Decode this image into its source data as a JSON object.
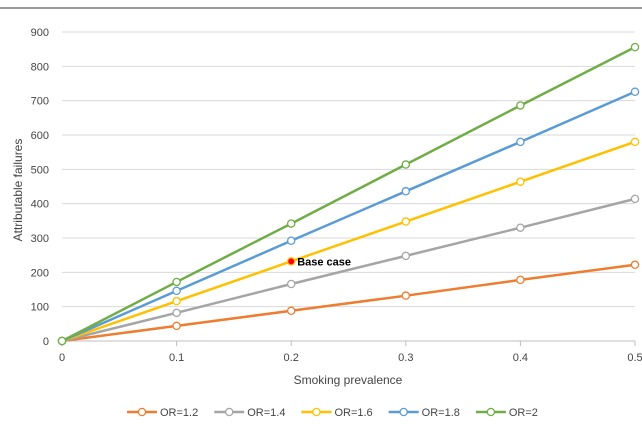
{
  "chart_data": {
    "type": "line",
    "title": "",
    "xlabel": "Smoking prevalence",
    "ylabel": "Attributable failures",
    "x": [
      0,
      0.1,
      0.2,
      0.3,
      0.4,
      0.5
    ],
    "x_ticks": [
      "0",
      "0.1",
      "0.2",
      "0.3",
      "0.4",
      "0.5"
    ],
    "y_ticks": [
      "0",
      "100",
      "200",
      "300",
      "400",
      "500",
      "600",
      "700",
      "800",
      "900"
    ],
    "xlim": [
      0,
      0.5
    ],
    "ylim": [
      0,
      900
    ],
    "grid": "horizontal",
    "legend_position": "bottom",
    "series": [
      {
        "name": "OR=1.2",
        "color": "#ED7D31",
        "values": [
          0,
          44,
          88,
          132,
          178,
          222
        ]
      },
      {
        "name": "OR=1.4",
        "color": "#A5A5A5",
        "values": [
          0,
          82,
          166,
          248,
          330,
          414
        ]
      },
      {
        "name": "OR=1.6",
        "color": "#FFC000",
        "values": [
          0,
          116,
          232,
          348,
          464,
          580
        ]
      },
      {
        "name": "OR=1.8",
        "color": "#5B9BD5",
        "values": [
          0,
          146,
          292,
          436,
          580,
          726
        ]
      },
      {
        "name": "OR=2",
        "color": "#70AD47",
        "values": [
          0,
          172,
          342,
          514,
          686,
          856
        ]
      }
    ],
    "annotations": [
      {
        "text": "Base case",
        "x": 0.2,
        "y": 232,
        "marker_color": "#FF0000"
      }
    ]
  }
}
